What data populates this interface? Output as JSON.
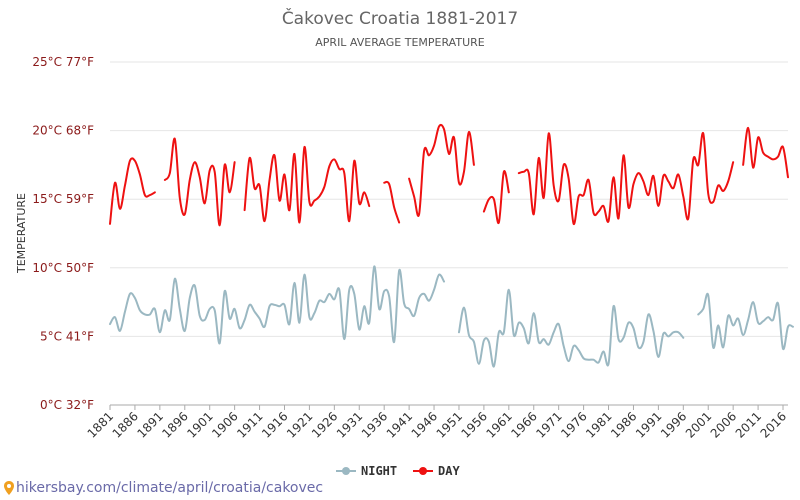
{
  "chart_data": {
    "type": "line",
    "title": "Čakovec Croatia 1881-2017",
    "subtitle": "APRIL AVERAGE TEMPERATURE",
    "ylabel": "TEMPERATURE",
    "xlim": [
      1881,
      2017
    ],
    "ylim": [
      0,
      25
    ],
    "y_ticks": [
      {
        "v": 0,
        "label": "0°C 32°F"
      },
      {
        "v": 5,
        "label": "5°C 41°F"
      },
      {
        "v": 10,
        "label": "10°C 50°F"
      },
      {
        "v": 15,
        "label": "15°C 59°F"
      },
      {
        "v": 20,
        "label": "20°C 68°F"
      },
      {
        "v": 25,
        "label": "25°C 77°F"
      }
    ],
    "x_ticks": [
      "1881",
      "1886",
      "1891",
      "1896",
      "1901",
      "1906",
      "1911",
      "1916",
      "1921",
      "1926",
      "1931",
      "1936",
      "1941",
      "1946",
      "1951",
      "1956",
      "1961",
      "1966",
      "1971",
      "1976",
      "1981",
      "1986",
      "1991",
      "1996",
      "2001",
      "2006",
      "2011",
      "2016"
    ],
    "grid": true,
    "legend_position": "bottom",
    "series": [
      {
        "name": "NIGHT",
        "color": "#9bb8c2",
        "segments": [
          [
            [
              1881,
              5.9
            ],
            [
              1882,
              6.4
            ],
            [
              1883,
              5.4
            ],
            [
              1884,
              6.8
            ],
            [
              1885,
              8.1
            ],
            [
              1886,
              7.8
            ],
            [
              1887,
              6.9
            ],
            [
              1888,
              6.6
            ],
            [
              1889,
              6.6
            ],
            [
              1890,
              7.0
            ],
            [
              1891,
              5.3
            ],
            [
              1892,
              6.9
            ],
            [
              1893,
              6.2
            ],
            [
              1894,
              9.2
            ],
            [
              1895,
              7.0
            ],
            [
              1896,
              5.4
            ],
            [
              1897,
              7.8
            ],
            [
              1898,
              8.7
            ],
            [
              1899,
              6.5
            ],
            [
              1900,
              6.2
            ],
            [
              1901,
              7.0
            ],
            [
              1902,
              6.9
            ],
            [
              1903,
              4.5
            ],
            [
              1904,
              8.3
            ],
            [
              1905,
              6.3
            ],
            [
              1906,
              7.0
            ],
            [
              1907,
              5.6
            ],
            [
              1908,
              6.2
            ],
            [
              1909,
              7.3
            ],
            [
              1910,
              6.8
            ],
            [
              1911,
              6.3
            ],
            [
              1912,
              5.7
            ],
            [
              1913,
              7.2
            ],
            [
              1914,
              7.3
            ],
            [
              1915,
              7.2
            ],
            [
              1916,
              7.3
            ],
            [
              1917,
              5.9
            ],
            [
              1918,
              8.9
            ],
            [
              1919,
              6.0
            ],
            [
              1920,
              9.5
            ],
            [
              1921,
              6.4
            ],
            [
              1922,
              6.7
            ],
            [
              1923,
              7.6
            ],
            [
              1924,
              7.5
            ],
            [
              1925,
              8.1
            ],
            [
              1926,
              7.7
            ],
            [
              1927,
              8.4
            ],
            [
              1928,
              4.8
            ],
            [
              1929,
              8.4
            ],
            [
              1930,
              8.1
            ],
            [
              1931,
              5.5
            ],
            [
              1932,
              7.2
            ],
            [
              1933,
              6.0
            ],
            [
              1934,
              10.1
            ],
            [
              1935,
              7.0
            ],
            [
              1936,
              8.3
            ],
            [
              1937,
              7.9
            ],
            [
              1938,
              4.6
            ],
            [
              1939,
              9.8
            ],
            [
              1940,
              7.4
            ],
            [
              1941,
              7.0
            ],
            [
              1942,
              6.5
            ],
            [
              1943,
              7.8
            ],
            [
              1944,
              8.1
            ],
            [
              1945,
              7.6
            ],
            [
              1946,
              8.4
            ],
            [
              1947,
              9.5
            ],
            [
              1948,
              9.0
            ]
          ],
          [
            [
              1951,
              5.3
            ],
            [
              1952,
              7.1
            ],
            [
              1953,
              5.1
            ],
            [
              1954,
              4.6
            ],
            [
              1955,
              3.0
            ],
            [
              1956,
              4.7
            ],
            [
              1957,
              4.6
            ],
            [
              1958,
              2.8
            ],
            [
              1959,
              5.3
            ],
            [
              1960,
              5.3
            ],
            [
              1961,
              8.4
            ],
            [
              1962,
              5.1
            ],
            [
              1963,
              6.0
            ],
            [
              1964,
              5.6
            ],
            [
              1965,
              4.5
            ],
            [
              1966,
              6.7
            ],
            [
              1967,
              4.6
            ],
            [
              1968,
              4.8
            ],
            [
              1969,
              4.4
            ],
            [
              1970,
              5.3
            ],
            [
              1971,
              5.9
            ],
            [
              1972,
              4.3
            ],
            [
              1973,
              3.2
            ],
            [
              1974,
              4.3
            ],
            [
              1975,
              4.0
            ],
            [
              1976,
              3.4
            ],
            [
              1977,
              3.3
            ],
            [
              1978,
              3.3
            ],
            [
              1979,
              3.1
            ],
            [
              1980,
              3.9
            ],
            [
              1981,
              3.0
            ],
            [
              1982,
              7.2
            ],
            [
              1983,
              4.8
            ],
            [
              1984,
              4.9
            ],
            [
              1985,
              6.0
            ],
            [
              1986,
              5.6
            ],
            [
              1987,
              4.2
            ],
            [
              1988,
              4.6
            ],
            [
              1989,
              6.6
            ],
            [
              1990,
              5.4
            ],
            [
              1991,
              3.5
            ],
            [
              1992,
              5.2
            ],
            [
              1993,
              5.0
            ],
            [
              1994,
              5.3
            ],
            [
              1995,
              5.3
            ],
            [
              1996,
              4.9
            ]
          ],
          [
            [
              1999,
              6.6
            ],
            [
              2000,
              7.0
            ],
            [
              2001,
              8.0
            ],
            [
              2002,
              4.2
            ],
            [
              2003,
              5.8
            ],
            [
              2004,
              4.2
            ],
            [
              2005,
              6.5
            ],
            [
              2006,
              5.8
            ],
            [
              2007,
              6.3
            ],
            [
              2008,
              5.1
            ],
            [
              2009,
              6.2
            ],
            [
              2010,
              7.5
            ],
            [
              2011,
              6.0
            ],
            [
              2012,
              6.1
            ],
            [
              2013,
              6.4
            ],
            [
              2014,
              6.2
            ],
            [
              2015,
              7.4
            ],
            [
              2016,
              4.1
            ],
            [
              2017,
              5.7
            ],
            [
              2018,
              5.7
            ]
          ]
        ]
      },
      {
        "name": "DAY",
        "color": "#ee1111",
        "segments": [
          [
            [
              1881,
              13.2
            ],
            [
              1882,
              16.2
            ],
            [
              1883,
              14.3
            ],
            [
              1884,
              16.0
            ],
            [
              1885,
              17.8
            ],
            [
              1886,
              17.8
            ],
            [
              1887,
              16.8
            ],
            [
              1888,
              15.3
            ],
            [
              1889,
              15.3
            ],
            [
              1890,
              15.5
            ]
          ],
          [
            [
              1892,
              16.4
            ],
            [
              1893,
              16.9
            ],
            [
              1894,
              19.4
            ],
            [
              1895,
              15.1
            ],
            [
              1896,
              13.9
            ],
            [
              1897,
              16.4
            ],
            [
              1898,
              17.7
            ],
            [
              1899,
              16.6
            ],
            [
              1900,
              14.7
            ],
            [
              1901,
              17.1
            ],
            [
              1902,
              17.0
            ],
            [
              1903,
              13.1
            ],
            [
              1904,
              17.5
            ],
            [
              1905,
              15.5
            ],
            [
              1906,
              17.7
            ]
          ],
          [
            [
              1908,
              14.2
            ],
            [
              1909,
              18.0
            ],
            [
              1910,
              15.8
            ],
            [
              1911,
              16.0
            ],
            [
              1912,
              13.4
            ],
            [
              1913,
              16.4
            ],
            [
              1914,
              18.2
            ],
            [
              1915,
              14.9
            ],
            [
              1916,
              16.8
            ],
            [
              1917,
              14.2
            ],
            [
              1918,
              18.3
            ],
            [
              1919,
              13.3
            ],
            [
              1920,
              18.8
            ],
            [
              1921,
              14.8
            ],
            [
              1922,
              14.9
            ],
            [
              1923,
              15.2
            ],
            [
              1924,
              15.9
            ],
            [
              1925,
              17.4
            ],
            [
              1926,
              17.9
            ],
            [
              1927,
              17.2
            ],
            [
              1928,
              16.9
            ],
            [
              1929,
              13.4
            ],
            [
              1930,
              17.8
            ],
            [
              1931,
              14.7
            ],
            [
              1932,
              15.5
            ],
            [
              1933,
              14.5
            ]
          ],
          [
            [
              1936,
              16.2
            ],
            [
              1937,
              16.1
            ],
            [
              1938,
              14.4
            ],
            [
              1939,
              13.3
            ]
          ],
          [
            [
              1941,
              16.5
            ],
            [
              1942,
              15.2
            ],
            [
              1943,
              13.9
            ],
            [
              1944,
              18.5
            ],
            [
              1945,
              18.2
            ],
            [
              1946,
              18.9
            ],
            [
              1947,
              20.3
            ],
            [
              1948,
              20.1
            ],
            [
              1949,
              18.3
            ],
            [
              1950,
              19.5
            ],
            [
              1951,
              16.2
            ],
            [
              1952,
              17.0
            ],
            [
              1953,
              19.9
            ],
            [
              1954,
              17.5
            ]
          ],
          [
            [
              1956,
              14.1
            ],
            [
              1957,
              15.0
            ],
            [
              1958,
              15.0
            ],
            [
              1959,
              13.3
            ],
            [
              1960,
              17.0
            ],
            [
              1961,
              15.5
            ]
          ],
          [
            [
              1963,
              16.9
            ],
            [
              1964,
              17.0
            ],
            [
              1965,
              16.9
            ],
            [
              1966,
              13.9
            ],
            [
              1967,
              18.0
            ],
            [
              1968,
              15.1
            ],
            [
              1969,
              19.8
            ],
            [
              1970,
              16.0
            ],
            [
              1971,
              14.9
            ],
            [
              1972,
              17.5
            ],
            [
              1973,
              16.5
            ],
            [
              1974,
              13.2
            ],
            [
              1975,
              15.2
            ],
            [
              1976,
              15.3
            ],
            [
              1977,
              16.4
            ],
            [
              1978,
              14.0
            ],
            [
              1979,
              14.1
            ],
            [
              1980,
              14.5
            ],
            [
              1981,
              13.4
            ],
            [
              1982,
              16.6
            ],
            [
              1983,
              13.6
            ],
            [
              1984,
              18.2
            ],
            [
              1985,
              14.4
            ],
            [
              1986,
              16.1
            ],
            [
              1987,
              16.9
            ],
            [
              1988,
              16.3
            ],
            [
              1989,
              15.3
            ],
            [
              1990,
              16.7
            ],
            [
              1991,
              14.5
            ],
            [
              1992,
              16.7
            ],
            [
              1993,
              16.3
            ],
            [
              1994,
              15.8
            ],
            [
              1995,
              16.8
            ],
            [
              1996,
              15.2
            ],
            [
              1997,
              13.6
            ],
            [
              1998,
              17.9
            ],
            [
              1999,
              17.5
            ],
            [
              2000,
              19.8
            ],
            [
              2001,
              15.4
            ],
            [
              2002,
              14.8
            ],
            [
              2003,
              16.0
            ],
            [
              2004,
              15.6
            ],
            [
              2005,
              16.3
            ],
            [
              2006,
              17.7
            ]
          ],
          [
            [
              2008,
              17.5
            ],
            [
              2009,
              20.2
            ],
            [
              2010,
              17.3
            ],
            [
              2011,
              19.5
            ],
            [
              2012,
              18.4
            ],
            [
              2013,
              18.1
            ],
            [
              2014,
              17.9
            ],
            [
              2015,
              18.1
            ],
            [
              2016,
              18.8
            ],
            [
              2017,
              16.6
            ]
          ]
        ]
      }
    ]
  },
  "footer": {
    "url_text": "hikersbay.com/climate/april/croatia/cakovec",
    "pin_color": "#f0a020"
  }
}
